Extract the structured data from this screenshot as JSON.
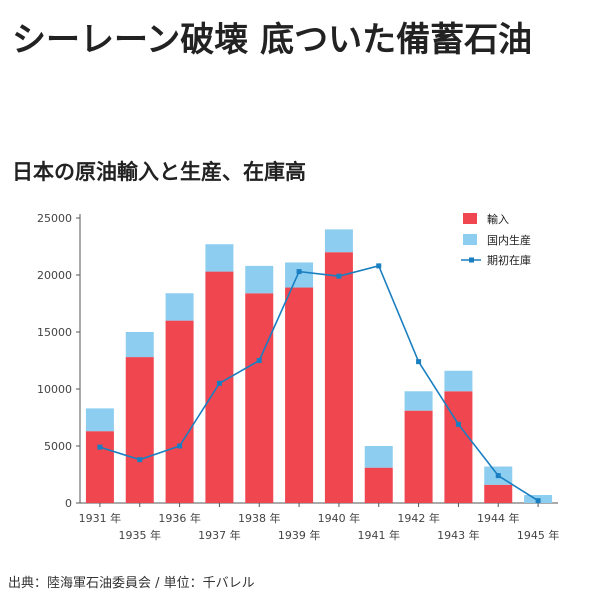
{
  "article": {
    "headline": "シーレーン破壊 底ついた備蓄石油",
    "chart_title": "日本の原油輸入と生産、在庫高",
    "source": "出典：陸海軍石油委員会 / 単位：千バレル"
  },
  "colors": {
    "import": "#f04650",
    "domestic": "#8ccdf0",
    "stock": "#1a7fc0",
    "axis": "#555555"
  },
  "chart_data": {
    "type": "bar",
    "stacked": true,
    "categories": [
      "1931 年",
      "1935 年",
      "1936 年",
      "1937 年",
      "1938 年",
      "1939 年",
      "1940 年",
      "1941 年",
      "1942 年",
      "1943 年",
      "1944 年",
      "1945 年"
    ],
    "series": [
      {
        "name": "輸入",
        "kind": "bar",
        "values": [
          6300,
          12800,
          16000,
          20300,
          18400,
          18900,
          22000,
          3100,
          8100,
          9800,
          1600,
          0
        ]
      },
      {
        "name": "国内生産",
        "kind": "bar",
        "values": [
          2000,
          2200,
          2400,
          2400,
          2400,
          2200,
          2000,
          1900,
          1700,
          1800,
          1600,
          700
        ]
      },
      {
        "name": "期初在庫",
        "kind": "line",
        "values": [
          4900,
          3800,
          5000,
          10500,
          12500,
          20300,
          19900,
          20800,
          12400,
          6900,
          2400,
          200
        ]
      }
    ],
    "yticks": [
      "0",
      "5000",
      "10000",
      "15000",
      "20000",
      "25000"
    ],
    "ylim": [
      0,
      25000
    ],
    "legend_position": "top-right",
    "grid": false
  }
}
